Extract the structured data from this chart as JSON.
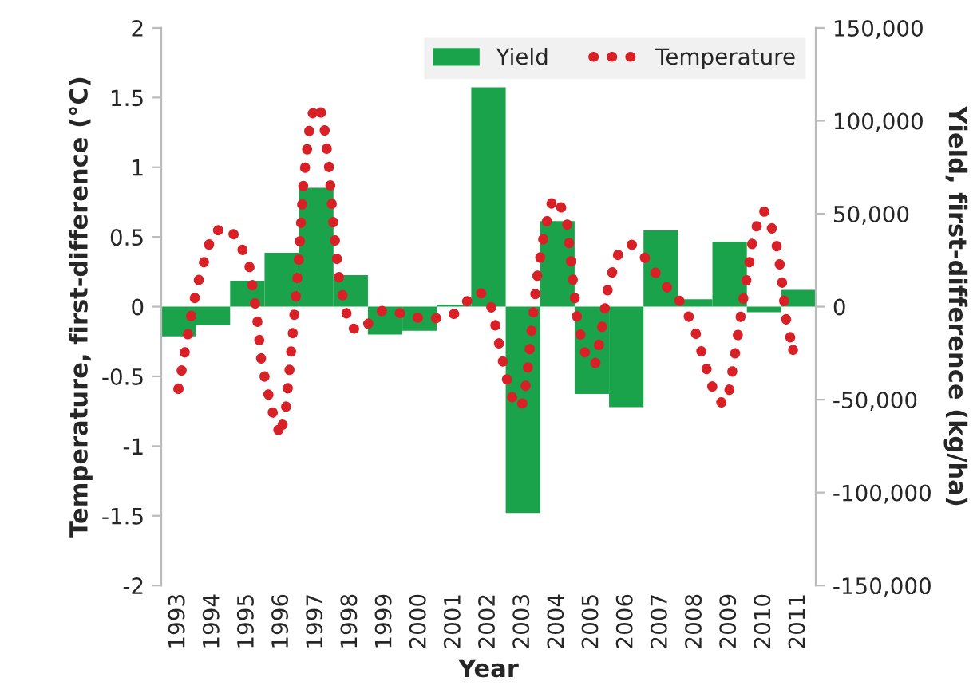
{
  "chart_data": {
    "type": "bar",
    "xlabel": "Year",
    "ylabel": "Temperature, first-difference (°C)",
    "y2label": "Yield, first-difference (kg/ha)",
    "x": [
      1993,
      1994,
      1995,
      1996,
      1997,
      1998,
      1999,
      2000,
      2001,
      2002,
      2003,
      2004,
      2005,
      2006,
      2007,
      2008,
      2009,
      2010,
      2011
    ],
    "xlim": [
      1992.5,
      2011.5
    ],
    "xticks": [
      1993,
      1994,
      1995,
      1996,
      1997,
      1998,
      1999,
      2000,
      2001,
      2002,
      2003,
      2004,
      2005,
      2006,
      2007,
      2008,
      2009,
      2010,
      2011
    ],
    "ylim": [
      -2,
      2
    ],
    "yticks": [
      -2,
      -1.5,
      -1,
      -0.5,
      0,
      0.5,
      1,
      1.5,
      2
    ],
    "y2lim": [
      -150000,
      150000
    ],
    "y2ticks": [
      {
        "value": -150000,
        "label": "-150,000"
      },
      {
        "value": -100000,
        "label": "-100,000"
      },
      {
        "value": -50000,
        "label": "-50,000"
      },
      0,
      {
        "value": 50000,
        "label": "50,000"
      },
      {
        "value": 100000,
        "label": "100,000"
      },
      {
        "value": 150000,
        "label": "150,000"
      }
    ],
    "legend": "top right",
    "grid": false,
    "series": [
      {
        "name": "Yield",
        "axis": "y2",
        "color": "#1aa34a",
        "values": [
          -16000,
          -10000,
          14000,
          29000,
          64000,
          17000,
          -15000,
          -13000,
          1000,
          118000,
          -111000,
          46000,
          -47000,
          -54000,
          41000,
          4000,
          35000,
          -3000,
          9000
        ]
      },
      {
        "name": "Temperature",
        "type": "line",
        "axis": "y",
        "color": "#d92027",
        "line_style": "dotted",
        "marker": "none",
        "x": [
          1993.0,
          1993.4,
          1993.6,
          1993.99,
          1994.34,
          1994.7,
          1995.06,
          1995.27,
          1995.41,
          1995.7,
          1995.96,
          1996.13,
          1996.34,
          1996.49,
          1996.63,
          1996.84,
          1997.03,
          1997.2,
          1997.37,
          1997.51,
          1997.67,
          1997.96,
          1998.27,
          1998.6,
          1998.91,
          1999.34,
          1999.77,
          2000.17,
          2000.63,
          2001.03,
          2001.34,
          2001.7,
          2002.01,
          2002.13,
          2002.31,
          2002.51,
          2002.77,
          2003.01,
          2003.13,
          2003.27,
          2003.41,
          2003.63,
          2003.87,
          2004.06,
          2004.27,
          2004.41,
          2004.56,
          2004.73,
          2004.91,
          2005.1,
          2005.27,
          2005.49,
          2005.77,
          2006.13,
          2006.46,
          2006.73,
          2006.99,
          2007.27,
          2007.59,
          2007.81,
          2007.99,
          2008.13,
          2008.27,
          2008.41,
          2008.56,
          2008.8,
          2008.99,
          2009.13,
          2009.27,
          2009.41,
          2009.56,
          2009.7,
          2009.99,
          2010.2,
          2010.34,
          2010.49,
          2010.63,
          2010.84
        ],
        "values": [
          -0.59,
          -0.02,
          0.2,
          0.53,
          0.57,
          0.5,
          0.29,
          -0.05,
          -0.4,
          -0.73,
          -0.93,
          -0.71,
          -0.13,
          0.32,
          0.9,
          1.36,
          1.45,
          1.36,
          1.0,
          0.55,
          0.19,
          -0.14,
          -0.18,
          -0.1,
          -0.03,
          -0.04,
          -0.07,
          -0.09,
          -0.08,
          -0.05,
          0.03,
          0.11,
          0.06,
          -0.05,
          -0.27,
          -0.5,
          -0.72,
          -0.69,
          -0.47,
          -0.12,
          0.21,
          0.55,
          0.78,
          0.74,
          0.62,
          0.28,
          -0.06,
          -0.28,
          -0.4,
          -0.41,
          -0.19,
          0.17,
          0.38,
          0.45,
          0.38,
          0.28,
          0.2,
          0.11,
          0.03,
          -0.07,
          -0.17,
          -0.28,
          -0.4,
          -0.51,
          -0.62,
          -0.7,
          -0.6,
          -0.38,
          -0.15,
          0.08,
          0.3,
          0.53,
          0.69,
          0.58,
          0.47,
          0.25,
          -0.08,
          -0.31
        ]
      }
    ]
  }
}
